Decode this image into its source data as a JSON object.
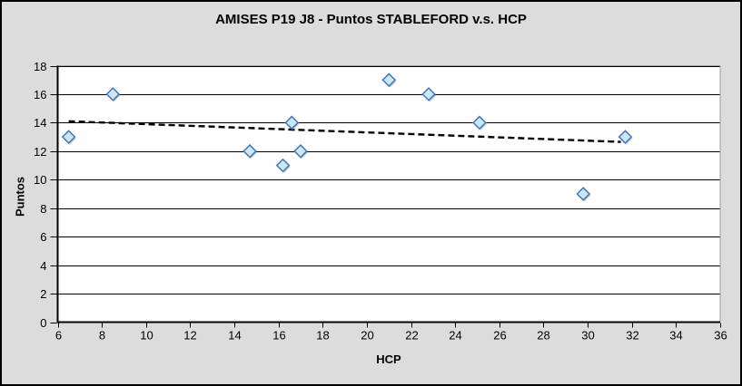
{
  "figure": {
    "background": "#dcdcdc",
    "border_color": "#000000"
  },
  "chart_data": {
    "type": "scatter",
    "title": "AMISES P19 J8 - Puntos STABLEFORD v.s. HCP",
    "xlabel": "HCP",
    "ylabel": "Puntos",
    "xlim": [
      6,
      36
    ],
    "ylim": [
      0,
      18
    ],
    "x_ticks": [
      6,
      8,
      10,
      12,
      14,
      16,
      18,
      20,
      22,
      24,
      26,
      28,
      30,
      32,
      34,
      36
    ],
    "y_ticks": [
      0,
      2,
      4,
      6,
      8,
      10,
      12,
      14,
      16,
      18
    ],
    "grid": "horizontal-only",
    "legend": "none",
    "points": [
      {
        "x": 6.5,
        "y": 13
      },
      {
        "x": 8.5,
        "y": 16
      },
      {
        "x": 14.7,
        "y": 12
      },
      {
        "x": 16.2,
        "y": 11
      },
      {
        "x": 16.6,
        "y": 14
      },
      {
        "x": 17.0,
        "y": 12
      },
      {
        "x": 21.0,
        "y": 17
      },
      {
        "x": 22.8,
        "y": 16
      },
      {
        "x": 25.1,
        "y": 14
      },
      {
        "x": 29.8,
        "y": 9
      },
      {
        "x": 31.7,
        "y": 13
      }
    ],
    "trendline": {
      "style": "dashed",
      "x1": 6.5,
      "y1": 14.1,
      "x2": 31.5,
      "y2": 12.65
    },
    "marker": {
      "shape": "diamond",
      "fill": "#c9e8f6",
      "stroke": "#4576b5",
      "shadow": "#9a9a9a"
    },
    "colors": {
      "plot_bg": "#ffffff",
      "gridline": "#000000",
      "axis": "#000000",
      "plot_border": "#a0a0a0",
      "trendline": "#000000",
      "tick_label": "#000000"
    }
  }
}
